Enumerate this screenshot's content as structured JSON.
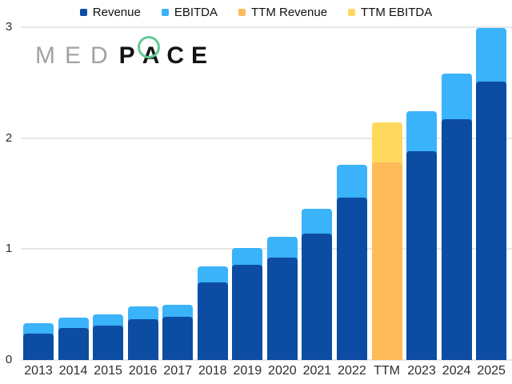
{
  "logo": {
    "med": "MED",
    "pace_p": "P",
    "pace_a": "A",
    "pace_ce": "CE",
    "med_color": "#a2a2a2",
    "pace_color": "#141414",
    "ring_color": "#62c993"
  },
  "axes": {
    "gridline_color": "#e7e7e7",
    "axis_text_color": "#2e2e2e",
    "background": "#ffffff"
  },
  "chart_data": {
    "type": "bar",
    "stacked": true,
    "title": "",
    "xlabel": "",
    "ylabel": "",
    "ylim": [
      0,
      3
    ],
    "yticks": [
      0,
      1,
      2,
      3
    ],
    "grid": "horizontal",
    "legend_position": "top",
    "categories": [
      "2013",
      "2014",
      "2015",
      "2016",
      "2017",
      "2018",
      "2019",
      "2020",
      "2021",
      "2022",
      "TTM",
      "2023",
      "2024",
      "2025"
    ],
    "series": [
      {
        "name": "Revenue",
        "color": "#0d4ca3",
        "values": [
          0.24,
          0.29,
          0.31,
          0.37,
          0.39,
          0.7,
          0.86,
          0.92,
          1.14,
          1.46,
          null,
          1.88,
          2.17,
          2.51
        ]
      },
      {
        "name": "EBITDA",
        "color": "#3bb3fa",
        "values": [
          0.09,
          0.09,
          0.1,
          0.11,
          0.11,
          0.14,
          0.15,
          0.19,
          0.22,
          0.3,
          null,
          0.36,
          0.41,
          0.48
        ]
      },
      {
        "name": "TTM Revenue",
        "color": "#ffbb59",
        "values": [
          null,
          null,
          null,
          null,
          null,
          null,
          null,
          null,
          null,
          null,
          1.78,
          null,
          null,
          null
        ]
      },
      {
        "name": "TTM EBITDA",
        "color": "#ffd95e",
        "values": [
          null,
          null,
          null,
          null,
          null,
          null,
          null,
          null,
          null,
          null,
          0.36,
          null,
          null,
          null
        ]
      }
    ]
  }
}
